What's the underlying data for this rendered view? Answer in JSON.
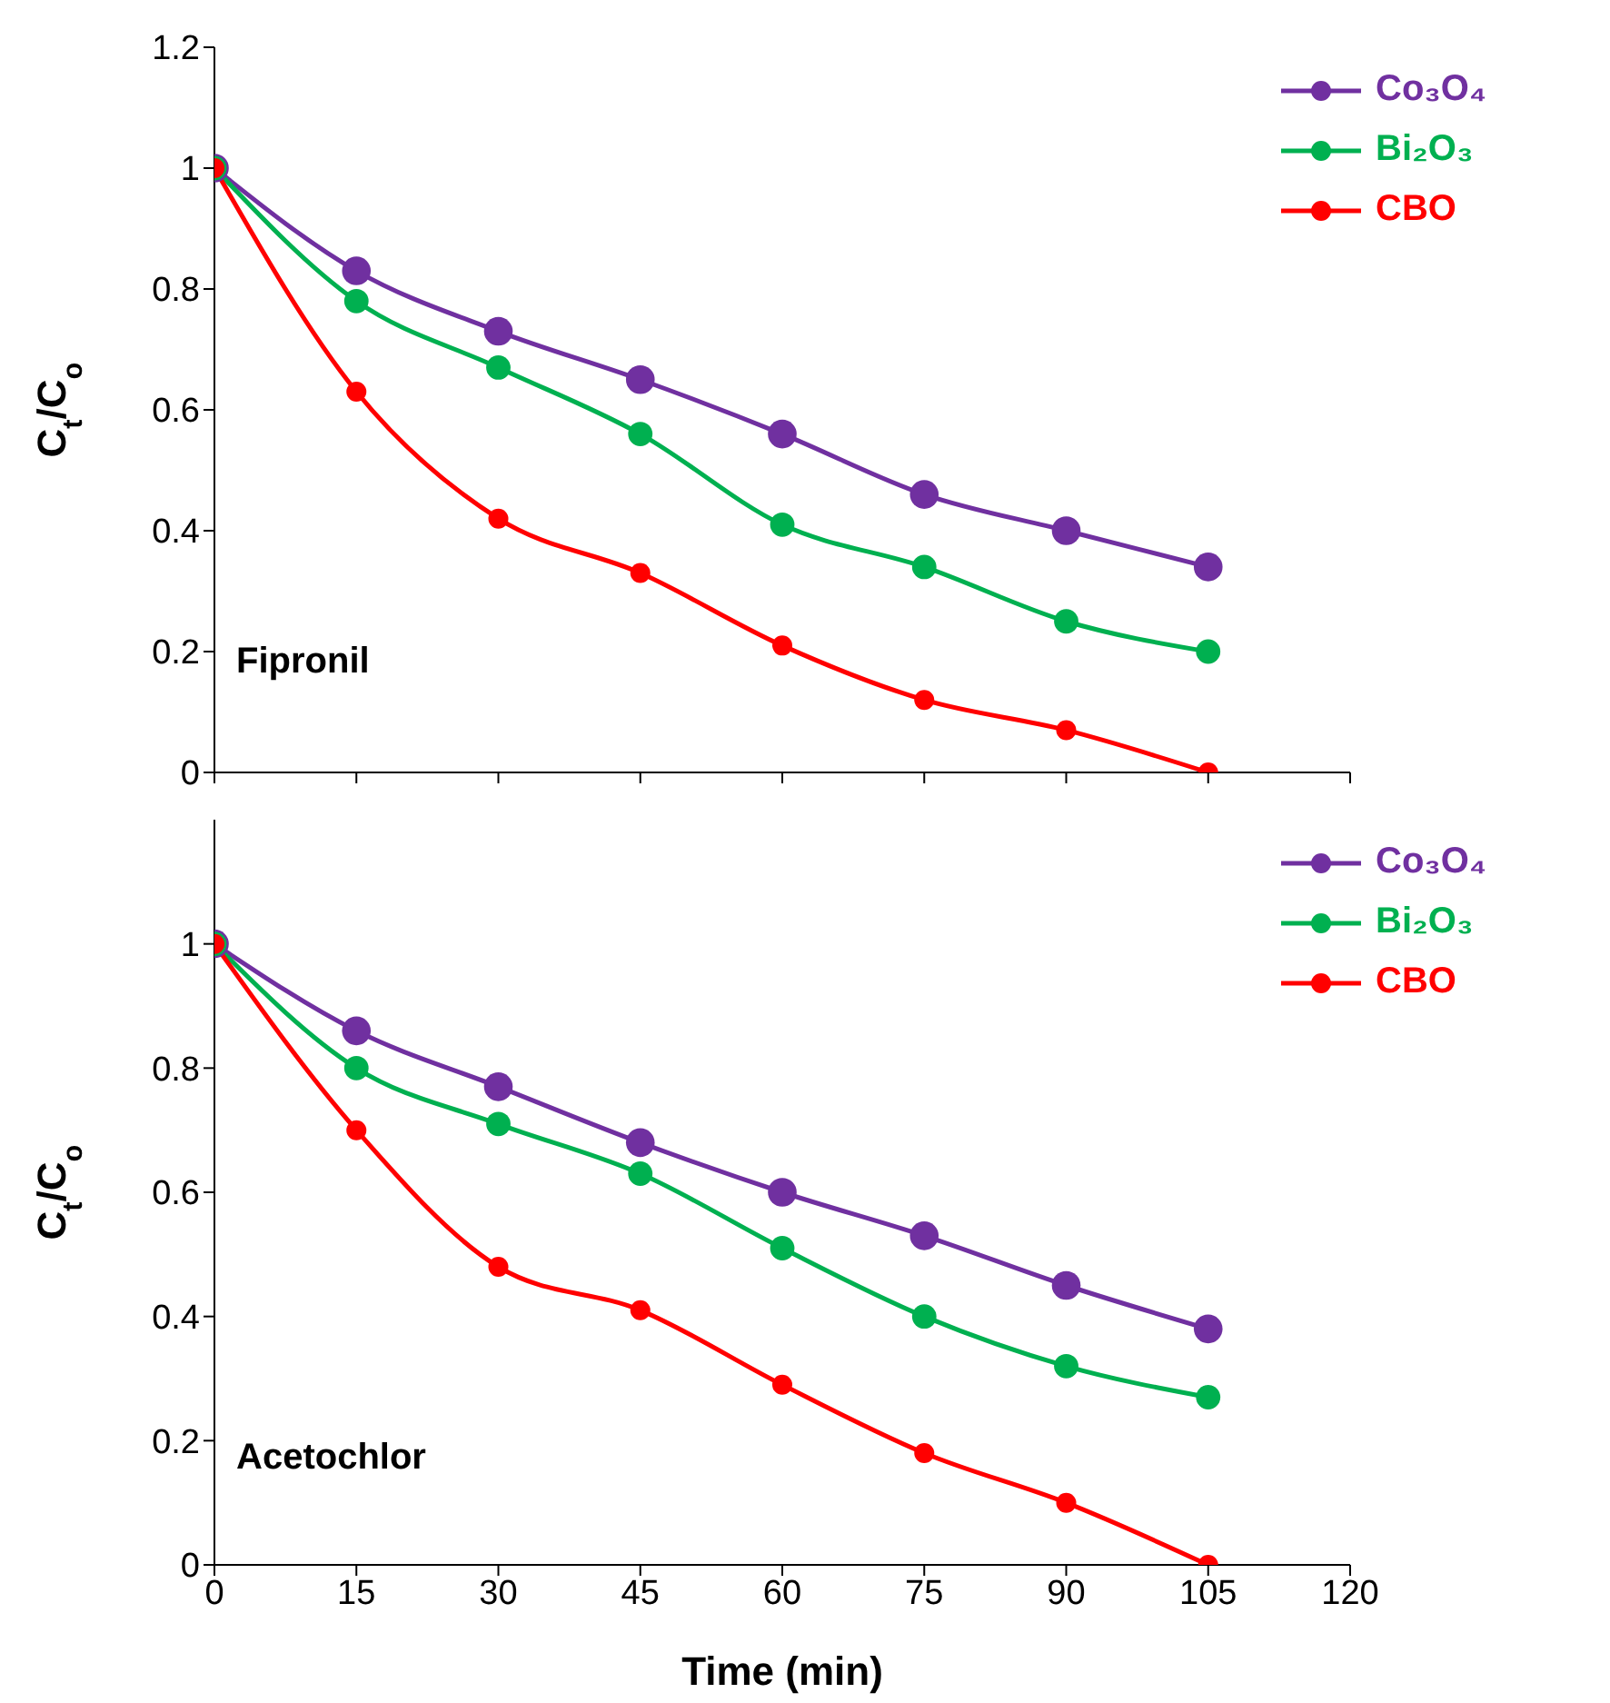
{
  "chart_data": [
    {
      "type": "line",
      "ylabel": "C$_{t}$/C$_{o}$",
      "annotations": [
        "Fipronil"
      ],
      "x": [
        0,
        15,
        30,
        45,
        60,
        75,
        90,
        105
      ],
      "xlim": [
        0,
        120
      ],
      "xticks": [
        0,
        15,
        30,
        45,
        60,
        75,
        90,
        105,
        120
      ],
      "ylim": [
        0,
        1.2
      ],
      "yticks": [
        0,
        0.2,
        0.4,
        0.6,
        0.8,
        1,
        1.2
      ],
      "tick_labels": "y",
      "legend": "top right",
      "marker": "circle",
      "line_style": "solid",
      "grid": false,
      "series": [
        {
          "name": "Co₃O₄",
          "color": "#7030a0",
          "values": [
            1,
            0.83,
            0.73,
            0.65,
            0.56,
            0.46,
            0.4,
            0.34
          ]
        },
        {
          "name": "Bi₂O₃",
          "color": "#00b050",
          "values": [
            1,
            0.78,
            0.67,
            0.56,
            0.41,
            0.34,
            0.25,
            0.2
          ]
        },
        {
          "name": "CBO",
          "color": "#ff0000",
          "values": [
            1,
            0.63,
            0.42,
            0.33,
            0.21,
            0.12,
            0.07,
            0
          ]
        }
      ]
    },
    {
      "type": "line",
      "xlabel": "Time (min)",
      "ylabel": "C$_{t}$/C$_{o}$",
      "annotations": [
        "Acetochlor"
      ],
      "x": [
        0,
        15,
        30,
        45,
        60,
        75,
        90,
        105
      ],
      "xlim": [
        0,
        120
      ],
      "xticks": [
        0,
        15,
        30,
        45,
        60,
        75,
        90,
        105,
        120
      ],
      "ylim": [
        0,
        1.2
      ],
      "yticks": [
        0,
        0.2,
        0.4,
        0.6,
        0.8,
        1
      ],
      "legend": "top right",
      "marker": "circle",
      "line_style": "solid",
      "grid": false,
      "series": [
        {
          "name": "Co₃O₄",
          "color": "#7030a0",
          "values": [
            1,
            0.86,
            0.77,
            0.68,
            0.6,
            0.53,
            0.45,
            0.38
          ]
        },
        {
          "name": "Bi₂O₃",
          "color": "#00b050",
          "values": [
            1,
            0.8,
            0.71,
            0.63,
            0.51,
            0.4,
            0.32,
            0.27
          ]
        },
        {
          "name": "CBO",
          "color": "#ff0000",
          "values": [
            1,
            0.7,
            0.48,
            0.41,
            0.29,
            0.18,
            0.1,
            0
          ]
        }
      ]
    }
  ]
}
